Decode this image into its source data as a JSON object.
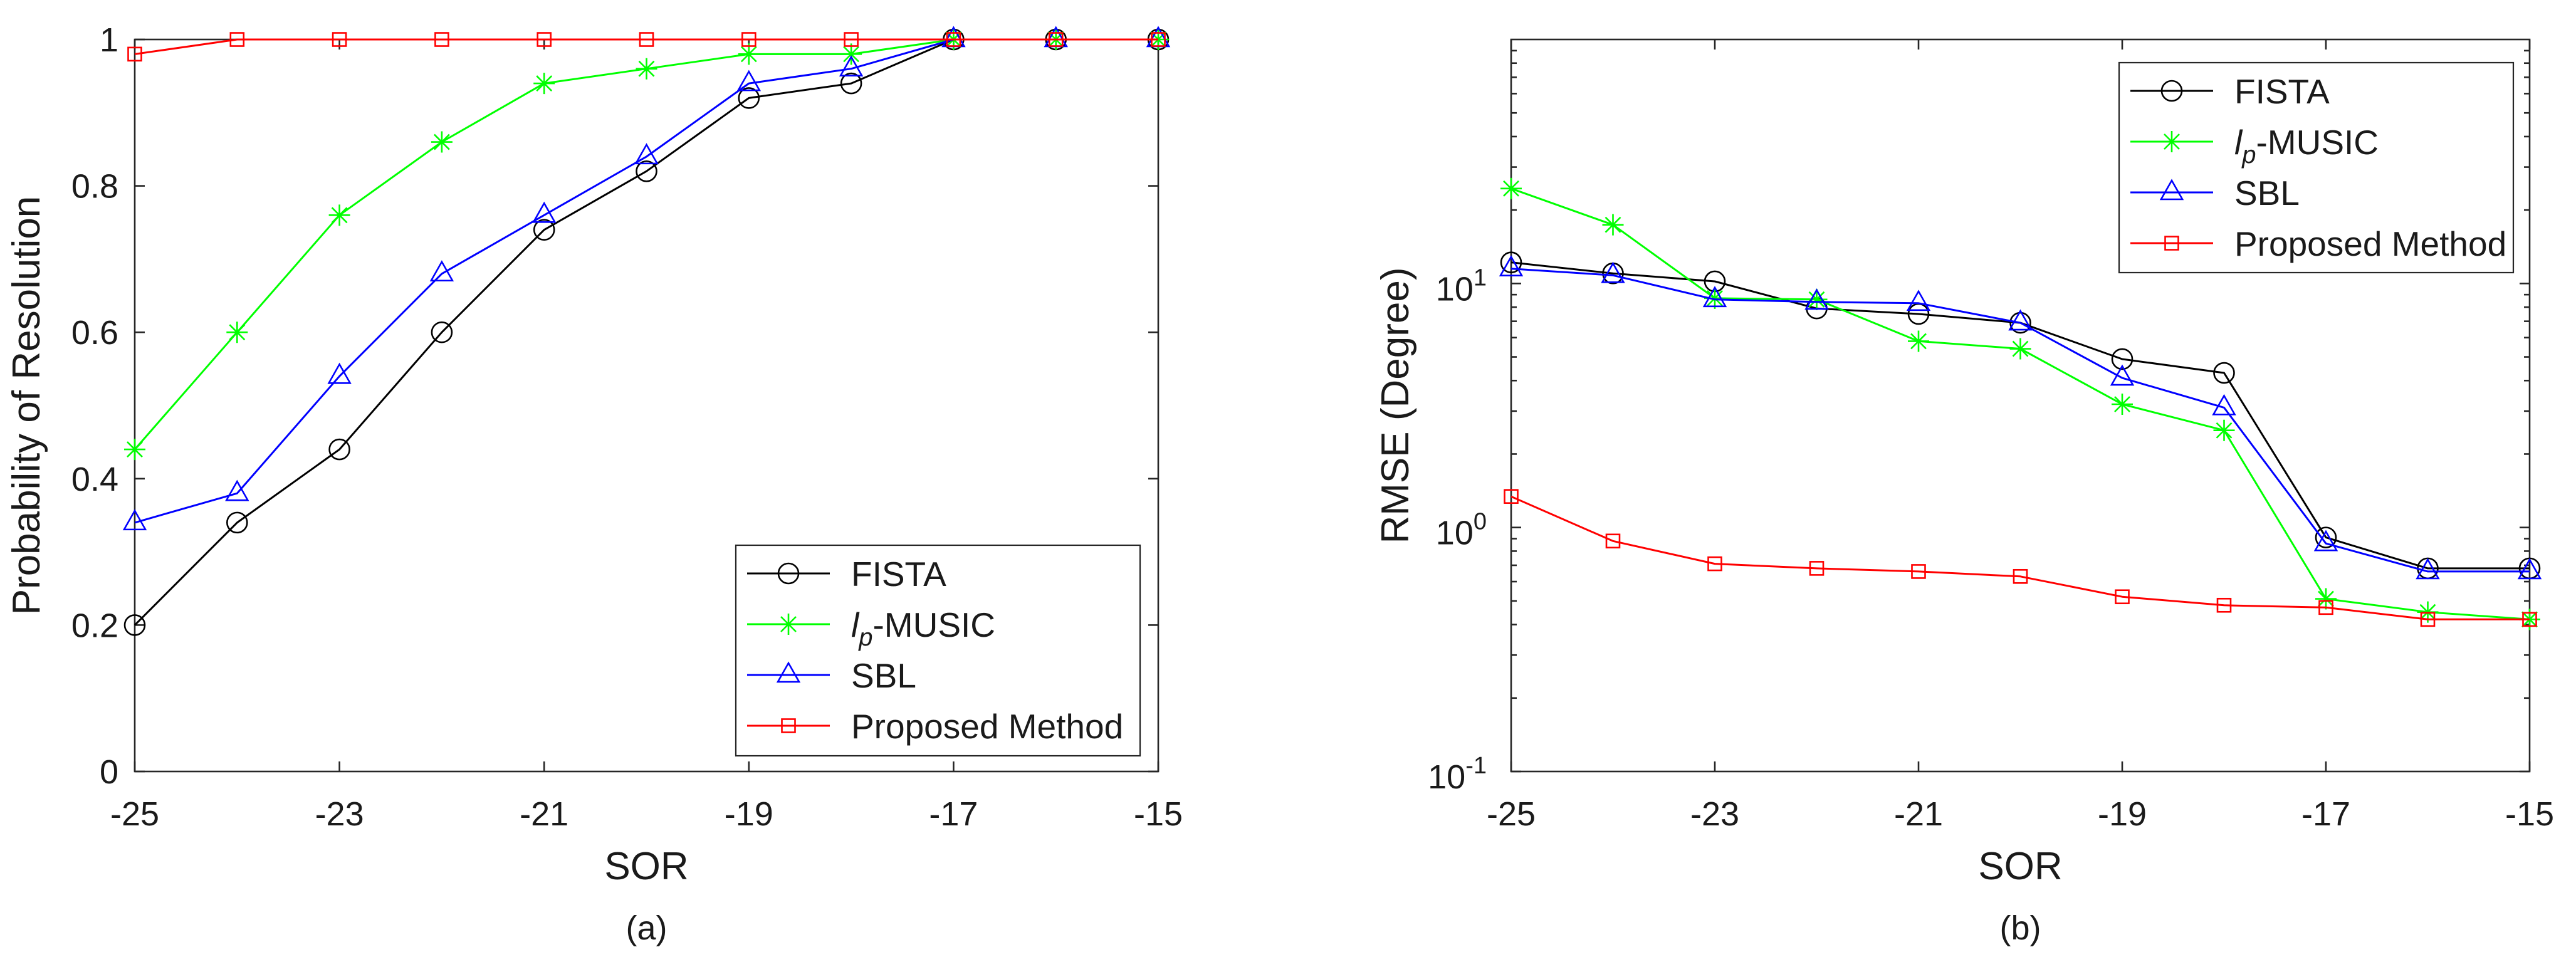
{
  "chart_data": [
    {
      "type": "line",
      "panel_label": "(a)",
      "xlabel": "SOR",
      "ylabel": "Probability of Resolution",
      "yscale": "linear",
      "xlim": [
        -25,
        -15
      ],
      "ylim": [
        0,
        1
      ],
      "x": [
        -25,
        -24,
        -23,
        -22,
        -21,
        -20,
        -19,
        -18,
        -17,
        -16,
        -15
      ],
      "x_ticks": [
        -25,
        -23,
        -21,
        -19,
        -17,
        -15
      ],
      "x_tick_labels": [
        "-25",
        "-23",
        "-21",
        "-19",
        "-17",
        "-15"
      ],
      "y_ticks": [
        0,
        0.2,
        0.4,
        0.6,
        0.8,
        1
      ],
      "y_tick_labels": [
        "0",
        "0.2",
        "0.4",
        "0.6",
        "0.8",
        "1"
      ],
      "legend_position": "bottom-right",
      "series": [
        {
          "label": {
            "text": "FISTA"
          },
          "color": "#000000",
          "marker": "circle",
          "values": [
            0.2,
            0.34,
            0.44,
            0.6,
            0.74,
            0.82,
            0.92,
            0.94,
            1.0,
            1.0,
            1.0
          ]
        },
        {
          "label": {
            "italic": "l",
            "sub": "p",
            "text": "-MUSIC"
          },
          "color": "#00ff00",
          "marker": "asterisk",
          "values": [
            0.44,
            0.6,
            0.76,
            0.86,
            0.94,
            0.96,
            0.98,
            0.98,
            1.0,
            1.0,
            1.0
          ]
        },
        {
          "label": {
            "text": "SBL"
          },
          "color": "#0000ff",
          "marker": "triangle",
          "values": [
            0.34,
            0.38,
            0.54,
            0.68,
            0.76,
            0.84,
            0.94,
            0.96,
            1.0,
            1.0,
            1.0
          ]
        },
        {
          "label": {
            "text": "Proposed Method"
          },
          "color": "#ff0000",
          "marker": "square",
          "values": [
            0.98,
            1.0,
            1.0,
            1.0,
            1.0,
            1.0,
            1.0,
            1.0,
            1.0,
            1.0,
            1.0
          ]
        }
      ]
    },
    {
      "type": "line",
      "panel_label": "(b)",
      "xlabel": "SOR",
      "ylabel": "RMSE (Degree)",
      "yscale": "log",
      "xlim": [
        -25,
        -15
      ],
      "ylim": [
        0.1,
        100
      ],
      "x": [
        -25,
        -24,
        -23,
        -22,
        -21,
        -20,
        -19,
        -18,
        -17,
        -16,
        -15
      ],
      "x_ticks": [
        -25,
        -23,
        -21,
        -19,
        -17,
        -15
      ],
      "x_tick_labels": [
        "-25",
        "-23",
        "-21",
        "-19",
        "-17",
        "-15"
      ],
      "y_ticks": [
        0.1,
        1,
        10
      ],
      "y_tick_labels": [
        {
          "base": "10",
          "exp": "-1"
        },
        {
          "base": "10",
          "exp": "0"
        },
        {
          "base": "10",
          "exp": "1"
        }
      ],
      "legend_position": "top-right",
      "series": [
        {
          "label": {
            "text": "FISTA"
          },
          "color": "#000000",
          "marker": "circle",
          "values": [
            12.2,
            11.0,
            10.2,
            7.9,
            7.5,
            6.9,
            4.9,
            4.3,
            0.91,
            0.68,
            0.68
          ]
        },
        {
          "label": {
            "italic": "l",
            "sub": "p",
            "text": "-MUSIC"
          },
          "color": "#00ff00",
          "marker": "asterisk",
          "values": [
            24.5,
            17.4,
            8.7,
            8.6,
            5.8,
            5.4,
            3.2,
            2.5,
            0.51,
            0.45,
            0.42
          ]
        },
        {
          "label": {
            "text": "SBL"
          },
          "color": "#0000ff",
          "marker": "triangle",
          "values": [
            11.5,
            10.8,
            8.6,
            8.4,
            8.3,
            6.9,
            4.1,
            3.1,
            0.86,
            0.66,
            0.66
          ]
        },
        {
          "label": {
            "text": "Proposed Method"
          },
          "color": "#ff0000",
          "marker": "square",
          "values": [
            1.34,
            0.88,
            0.71,
            0.68,
            0.66,
            0.63,
            0.52,
            0.48,
            0.47,
            0.42,
            0.42
          ]
        }
      ]
    }
  ]
}
